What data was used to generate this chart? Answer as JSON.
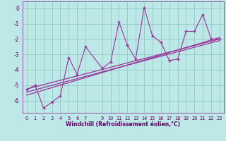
{
  "background_color": "#bde8e8",
  "grid_color": "#99cccc",
  "line_color": "#993399",
  "marker_color": "#993399",
  "xlabel": "Windchill (Refroidissement éolien,°C)",
  "xlim": [
    -0.5,
    23.5
  ],
  "ylim": [
    -6.8,
    0.45
  ],
  "yticks": [
    0,
    -1,
    -2,
    -3,
    -4,
    -5,
    -6
  ],
  "xtick_labels": [
    "0",
    "1",
    "2",
    "3",
    "4",
    "5",
    "6",
    "7",
    "9",
    "10",
    "11",
    "12",
    "13",
    "14",
    "15",
    "16",
    "17",
    "18",
    "19",
    "20",
    "21",
    "22",
    "23"
  ],
  "xtick_pos": [
    0,
    1,
    2,
    3,
    4,
    5,
    6,
    7,
    9,
    10,
    11,
    12,
    13,
    14,
    15,
    16,
    17,
    18,
    19,
    20,
    21,
    22,
    23
  ],
  "scatter_x": [
    0,
    1,
    2,
    3,
    4,
    5,
    6,
    7,
    9,
    10,
    11,
    12,
    13,
    14,
    15,
    16,
    17,
    18,
    19,
    20,
    21,
    22,
    23
  ],
  "scatter_y": [
    -5.3,
    -5.0,
    -6.5,
    -6.1,
    -5.7,
    -3.2,
    -4.3,
    -2.5,
    -3.9,
    -3.5,
    -0.9,
    -2.4,
    -3.3,
    0.05,
    -1.8,
    -2.2,
    -3.4,
    -3.3,
    -1.5,
    -1.5,
    -0.4,
    -2.0,
    -2.0
  ],
  "line1_x": [
    0,
    23
  ],
  "line1_y": [
    -5.25,
    -2.0
  ],
  "line2_x": [
    0,
    23
  ],
  "line2_y": [
    -5.45,
    -2.1
  ],
  "line3_x": [
    0,
    23
  ],
  "line3_y": [
    -5.65,
    -1.9
  ]
}
